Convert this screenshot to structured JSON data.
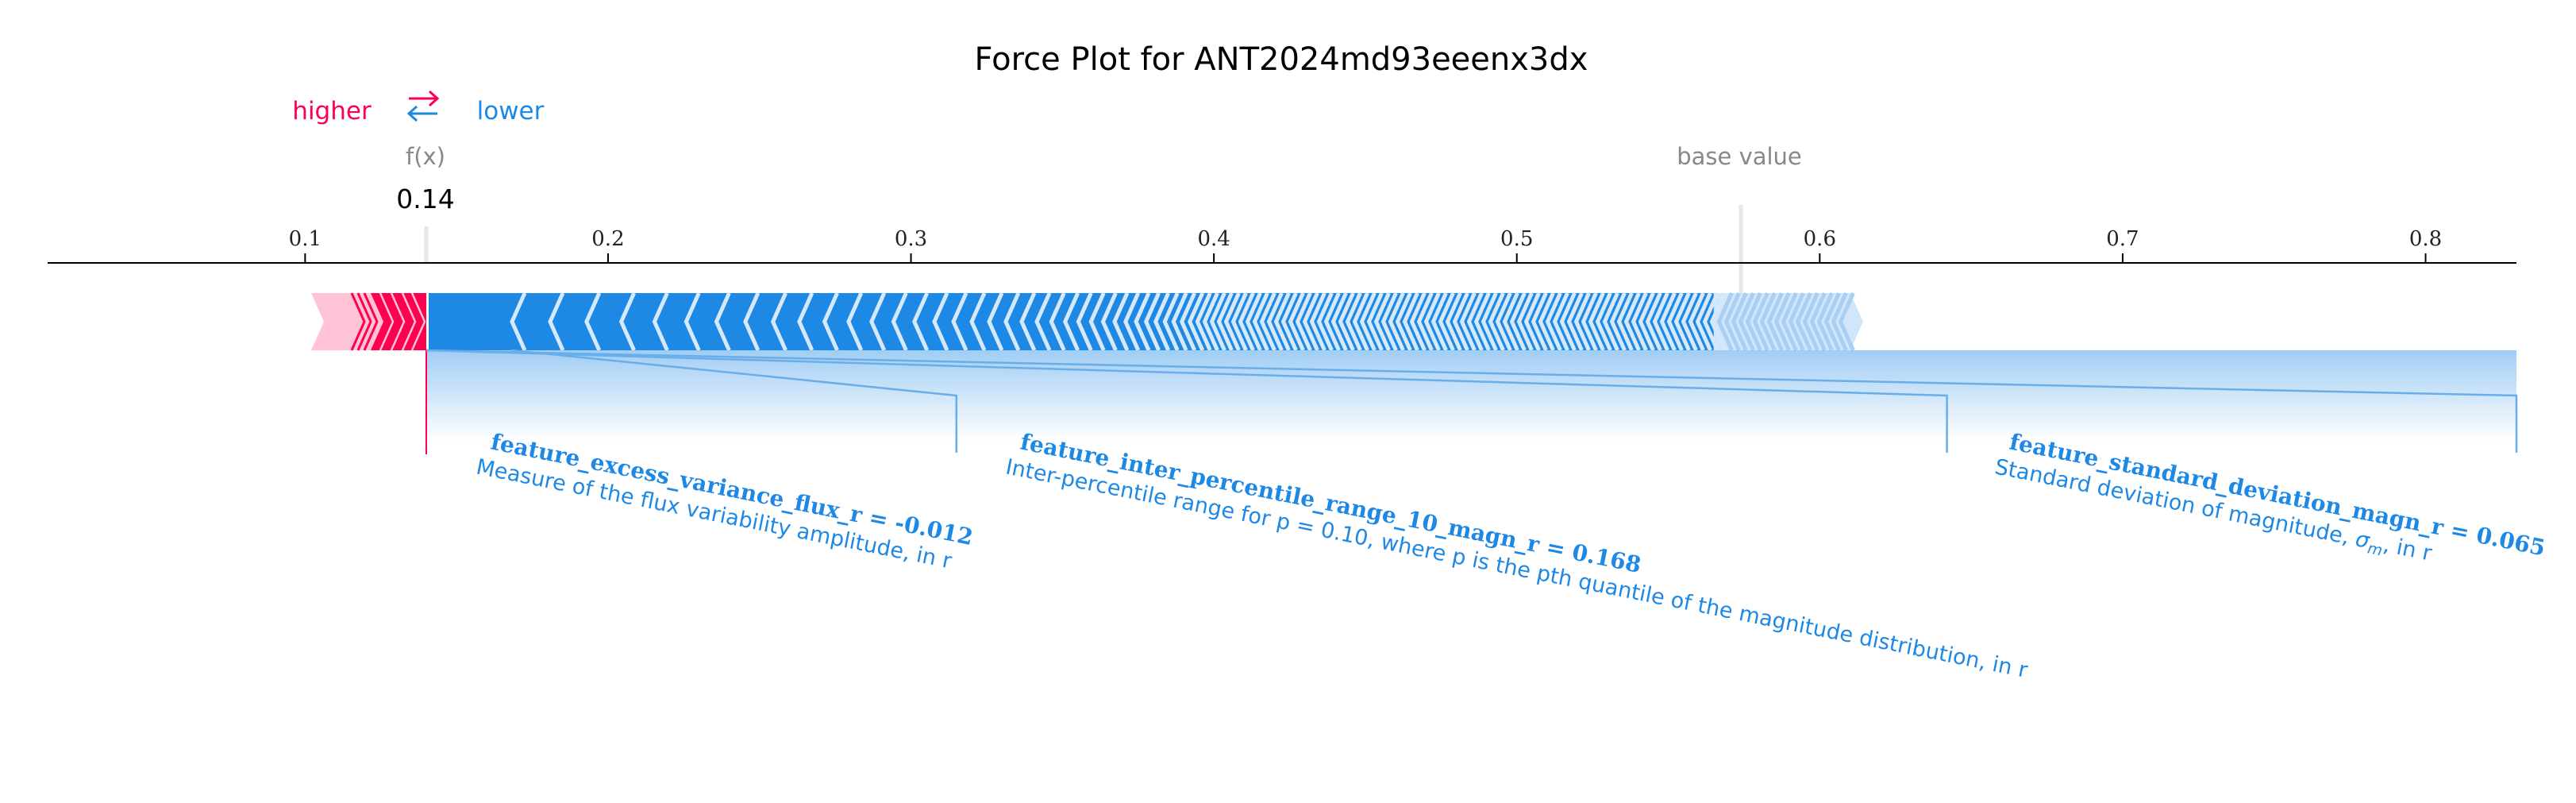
{
  "chart_data": {
    "type": "force",
    "title": "Force Plot for ANT2024md93eeenx3dx",
    "legend": {
      "higher": "higher",
      "lower": "lower",
      "arrow_glyph": "⇄"
    },
    "fx_label": "f(x)",
    "fx_value": "0.14",
    "output_value": 0.14,
    "base_value_label": "base value",
    "base_value": 0.574,
    "axis": {
      "xlim": [
        0.015,
        0.83
      ],
      "ticks": [
        0.1,
        0.2,
        0.3,
        0.4,
        0.5,
        0.6,
        0.7,
        0.8
      ],
      "tick_labels": [
        "0.1",
        "0.2",
        "0.3",
        "0.4",
        "0.5",
        "0.6",
        "0.7",
        "0.8"
      ]
    },
    "positive_band": {
      "start": 0.102,
      "end": 0.14
    },
    "negative_band": {
      "start": 0.14,
      "end": 0.61
    },
    "annotations": [
      {
        "feature": "feature_excess_variance_flux_r = -0.012",
        "description": "Measure of the flux variability amplitude, in r",
        "segment": [
          0.14,
          0.168
        ],
        "anchor": 0.315
      },
      {
        "feature": "feature_inter_percentile_range_10_magn_r = 0.168",
        "description": "Inter-percentile range for p = 0.10, where p is the pth quantile of the magnitude distribution, in r",
        "segment": [
          0.14,
          0.14
        ],
        "anchor": 0.642
      },
      {
        "feature": "feature_standard_deviation_magn_r = 0.065",
        "description_main": "Standard deviation of magnitude,",
        "description_symbol": "σ",
        "description_sub": "m",
        "description_end": ", in r",
        "segment": [
          0.14,
          0.14
        ],
        "anchor": 0.83
      }
    ],
    "colors": {
      "positive": "#ff0051",
      "positive_light": "#ffc3d5",
      "negative": "#1e88e5",
      "negative_light": "#d1e6fa",
      "axis": "#000000",
      "muted": "#888888"
    }
  }
}
